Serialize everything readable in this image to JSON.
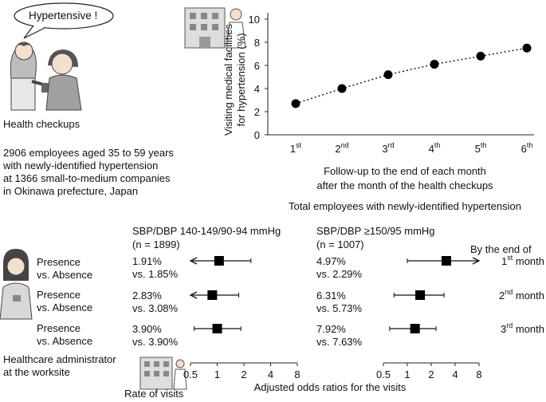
{
  "bubble_text": "Hypertensive !",
  "health_checkups_label": "Health checkups",
  "description": [
    "2906 employees aged 35 to 59 years",
    "with newly-identified hypertension",
    "at 1366 small-to-medium companies",
    "in Okinawa prefecture, Japan"
  ],
  "administrator_label": [
    "Healthcare administrator",
    "at the worksite"
  ],
  "rate_of_visits_label": "Rate of visits",
  "presence_label": "Presence",
  "absence_label": "vs. Absence",
  "chart_data": [
    {
      "type": "line",
      "title": "",
      "ylabel": "Visiting medical facilities for hypertension (%)",
      "xlabel": "Follow-up to the end of each month after the month of the health checkups",
      "xlabel_lines": [
        "Follow-up to the end of each month",
        "after the month of the health checkups"
      ],
      "caption": "Total employees with newly-identified hypertension",
      "categories": [
        {
          "num": "1",
          "sup": "st"
        },
        {
          "num": "2",
          "sup": "nd"
        },
        {
          "num": "3",
          "sup": "rd"
        },
        {
          "num": "4",
          "sup": "th"
        },
        {
          "num": "5",
          "sup": "th"
        },
        {
          "num": "6",
          "sup": "th"
        }
      ],
      "values": [
        2.7,
        4.0,
        5.2,
        6.1,
        6.8,
        7.5
      ],
      "yticks": [
        "0",
        "2",
        "4",
        "6",
        "8",
        "10"
      ],
      "ylim": [
        0,
        10
      ],
      "grid": false,
      "line_style": "dotted"
    },
    {
      "type": "forest",
      "xlabel": "Adjusted odds ratios for the visits",
      "xscale": "log",
      "xticks": [
        "0.5",
        "1",
        "2",
        "4",
        "8"
      ],
      "month_header": "By the end of",
      "months": [
        {
          "num": "1",
          "sup": "st",
          "word": "month"
        },
        {
          "num": "2",
          "sup": "nd",
          "word": "month"
        },
        {
          "num": "3",
          "sup": "rd",
          "word": "month"
        }
      ],
      "panels": [
        {
          "header": "SBP/DBP 140-149/90-94 mmHg",
          "n": "(n = 1899)",
          "rows": [
            {
              "rate": "1.91%",
              "vs": "vs. 1.85%",
              "or": 1.05,
              "lo": 0.5,
              "hi": 2.4,
              "lo_arrow": true,
              "hi_arrow": false
            },
            {
              "rate": "2.83%",
              "vs": "vs. 3.08%",
              "or": 0.88,
              "lo": 0.5,
              "hi": 1.75,
              "lo_arrow": true,
              "hi_arrow": false
            },
            {
              "rate": "3.90%",
              "vs": "vs. 3.90%",
              "or": 1.0,
              "lo": 0.55,
              "hi": 1.85,
              "lo_arrow": false,
              "hi_arrow": false
            }
          ]
        },
        {
          "header": "SBP/DBP ≥150/95 mmHg",
          "n": "(n = 1007)",
          "rows": [
            {
              "rate": "4.97%",
              "vs": "vs. 2.29%",
              "or": 3.1,
              "lo": 1.0,
              "hi": 8.0,
              "lo_arrow": false,
              "hi_arrow": true
            },
            {
              "rate": "6.31%",
              "vs": "vs. 5.73%",
              "or": 1.45,
              "lo": 0.68,
              "hi": 2.9,
              "lo_arrow": false,
              "hi_arrow": false
            },
            {
              "rate": "7.92%",
              "vs": "vs. 7.63%",
              "or": 1.25,
              "lo": 0.6,
              "hi": 2.3,
              "lo_arrow": false,
              "hi_arrow": false
            }
          ]
        }
      ]
    }
  ]
}
